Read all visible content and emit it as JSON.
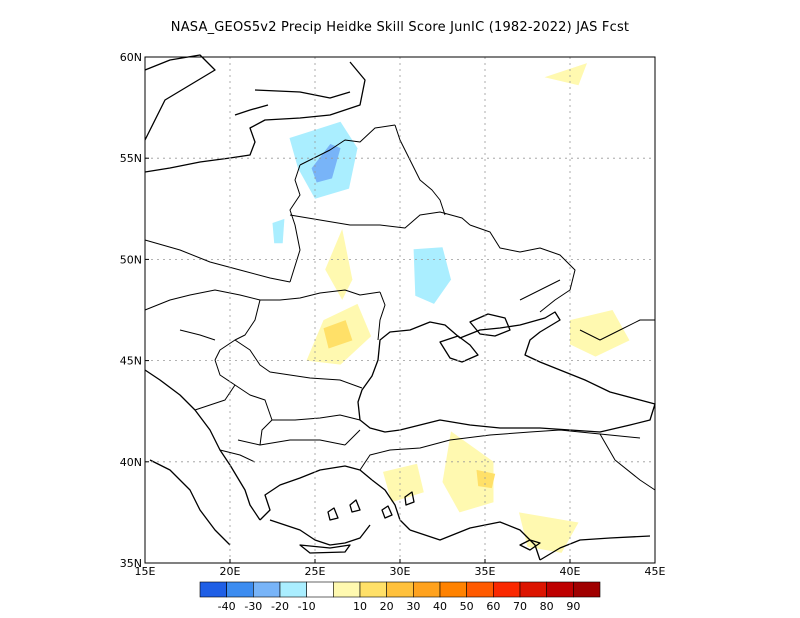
{
  "title": "NASA_GEOS5v2 Precip Heidke Skill Score JunIC (1982-2022) JAS Fcst",
  "map": {
    "lon_range": [
      15,
      45
    ],
    "lat_range": [
      35,
      60
    ],
    "x_ticks": [
      {
        "value": 15,
        "label": "15E"
      },
      {
        "value": 20,
        "label": "20E"
      },
      {
        "value": 25,
        "label": "25E"
      },
      {
        "value": 30,
        "label": "30E"
      },
      {
        "value": 35,
        "label": "35E"
      },
      {
        "value": 40,
        "label": "40E"
      },
      {
        "value": 45,
        "label": "45E"
      }
    ],
    "y_ticks": [
      {
        "value": 35,
        "label": "35N"
      },
      {
        "value": 40,
        "label": "40N"
      },
      {
        "value": 45,
        "label": "45N"
      },
      {
        "value": 50,
        "label": "50N"
      },
      {
        "value": 55,
        "label": "55N"
      },
      {
        "value": 60,
        "label": "60N"
      }
    ],
    "grid": "dotted"
  },
  "colorbar": {
    "colors": [
      "#1f5fe6",
      "#3c8cf0",
      "#78b4f8",
      "#aaeeff",
      "#ffffff",
      "#fff9b0",
      "#ffe068",
      "#ffc13c",
      "#ffa21e",
      "#ff8200",
      "#ff5a00",
      "#fa2800",
      "#dc1400",
      "#be0000",
      "#a00000"
    ],
    "labels": [
      "-40",
      "-30",
      "-20",
      "-10",
      "10",
      "20",
      "30",
      "40",
      "50",
      "60",
      "70",
      "80",
      "90"
    ]
  },
  "chart_data": {
    "type": "heatmap",
    "title": "NASA_GEOS5v2 Precip Heidke Skill Score JunIC (1982-2022) JAS Fcst",
    "x_range": [
      15,
      45
    ],
    "y_range": [
      35,
      60
    ],
    "contour_levels": [
      -40,
      -30,
      -20,
      -10,
      10,
      20,
      30,
      40,
      50,
      60,
      70,
      80,
      90
    ],
    "regions": [
      {
        "value": -20,
        "polygon": [
          [
            23.5,
            56
          ],
          [
            26.5,
            56.8
          ],
          [
            27.5,
            55.5
          ],
          [
            27,
            53.5
          ],
          [
            25,
            53
          ],
          [
            24,
            54.5
          ]
        ]
      },
      {
        "value": -30,
        "polygon": [
          [
            24.8,
            54.5
          ],
          [
            25.9,
            55.7
          ],
          [
            26.5,
            55.5
          ],
          [
            26,
            54
          ],
          [
            25.1,
            53.8
          ]
        ]
      },
      {
        "value": -10,
        "polygon": [
          [
            21.5,
            52
          ],
          [
            23.5,
            53
          ],
          [
            23.5,
            50.8
          ],
          [
            22,
            50
          ],
          [
            20.5,
            50.5
          ]
        ]
      },
      {
        "value": -20,
        "polygon": [
          [
            22.5,
            51.8
          ],
          [
            23.2,
            52
          ],
          [
            23.1,
            50.8
          ],
          [
            22.6,
            50.8
          ]
        ]
      },
      {
        "value": -10,
        "polygon": [
          [
            30,
            51.5
          ],
          [
            33,
            51.8
          ],
          [
            35.5,
            50
          ],
          [
            35.5,
            47.5
          ],
          [
            33,
            46.5
          ],
          [
            30.5,
            47
          ],
          [
            29.8,
            49.5
          ]
        ]
      },
      {
        "value": -20,
        "polygon": [
          [
            30.8,
            50.5
          ],
          [
            32.5,
            50.6
          ],
          [
            33,
            49
          ],
          [
            32,
            47.8
          ],
          [
            30.9,
            48.2
          ]
        ]
      },
      {
        "value": -10,
        "polygon": [
          [
            35.3,
            53.5
          ],
          [
            38.5,
            55
          ],
          [
            41,
            54
          ],
          [
            40,
            51.5
          ],
          [
            37,
            51
          ],
          [
            35.5,
            51.5
          ]
        ]
      },
      {
        "value": -10,
        "polygon": [
          [
            38.8,
            55.5
          ],
          [
            40.5,
            55.4
          ],
          [
            39.9,
            54.6
          ]
        ]
      },
      {
        "value": -10,
        "polygon": [
          [
            18,
            59.2
          ],
          [
            21,
            59.6
          ],
          [
            19.8,
            58.8
          ]
        ]
      },
      {
        "value": 10,
        "polygon": [
          [
            25.5,
            47
          ],
          [
            27.5,
            47.8
          ],
          [
            28.3,
            46.2
          ],
          [
            26.5,
            44.8
          ],
          [
            24.5,
            45
          ]
        ]
      },
      {
        "value": 20,
        "polygon": [
          [
            25.5,
            46.6
          ],
          [
            26.8,
            47
          ],
          [
            27.2,
            46
          ],
          [
            25.8,
            45.6
          ]
        ]
      },
      {
        "value": 10,
        "polygon": [
          [
            25.6,
            49.5
          ],
          [
            26.6,
            51.5
          ],
          [
            27.2,
            49
          ],
          [
            26.6,
            48
          ]
        ]
      },
      {
        "value": 10,
        "polygon": [
          [
            40,
            47
          ],
          [
            42.5,
            47.5
          ],
          [
            43.5,
            46
          ],
          [
            41.5,
            45.2
          ],
          [
            40,
            45.8
          ]
        ]
      },
      {
        "value": 10,
        "polygon": [
          [
            33,
            41.5
          ],
          [
            35.5,
            40
          ],
          [
            35.5,
            38
          ],
          [
            33.5,
            37.5
          ],
          [
            32.5,
            39
          ]
        ]
      },
      {
        "value": 10,
        "polygon": [
          [
            29,
            39.5
          ],
          [
            31,
            39.9
          ],
          [
            31.4,
            38.5
          ],
          [
            29.5,
            38
          ]
        ]
      },
      {
        "value": 20,
        "polygon": [
          [
            34.5,
            39.6
          ],
          [
            35.6,
            39.4
          ],
          [
            35.4,
            38.7
          ],
          [
            34.6,
            38.8
          ]
        ]
      },
      {
        "value": 10,
        "polygon": [
          [
            37,
            37.5
          ],
          [
            40.5,
            37
          ],
          [
            39.5,
            35.5
          ],
          [
            37.5,
            35.8
          ]
        ]
      },
      {
        "value": 10,
        "polygon": [
          [
            38.5,
            59
          ],
          [
            41,
            59.7
          ],
          [
            40.5,
            58.6
          ]
        ]
      }
    ]
  }
}
